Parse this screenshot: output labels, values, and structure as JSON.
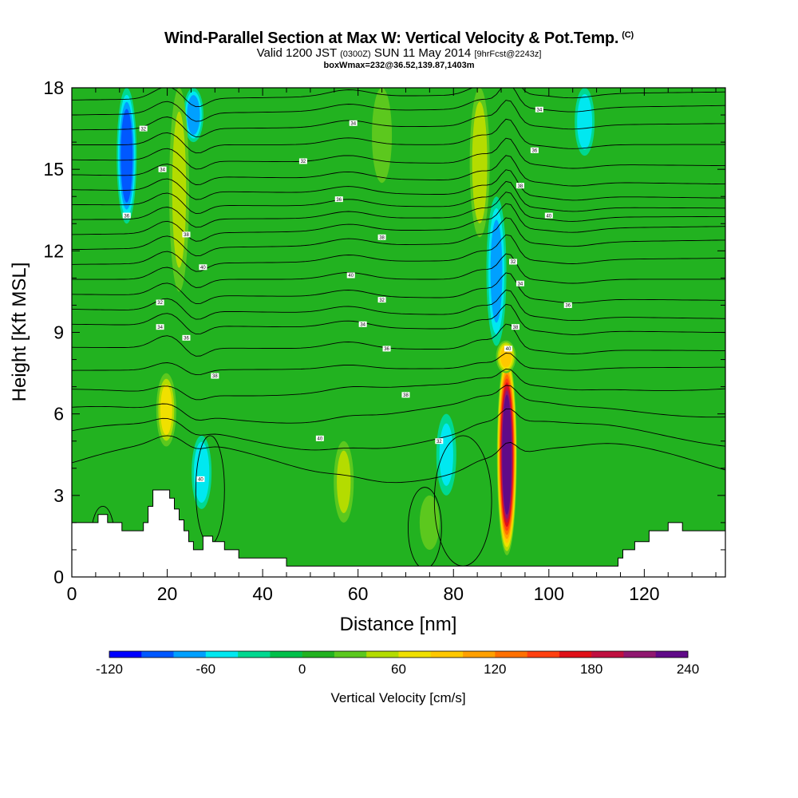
{
  "title": {
    "main": "Wind-Parallel Section at Max W: Vertical Velocity & Pot.Temp.",
    "mark": "(C)",
    "valid_prefix": "Valid 1200 JST",
    "valid_utc": "(0300Z)",
    "valid_date": "SUN 11 May 2014",
    "forecast": "[9hrFcst@2243z]",
    "box_info": "boxWmax=232@36.52,139.87,1403m"
  },
  "chart_data": {
    "type": "heatmap",
    "xlabel": "Distance [nm]",
    "ylabel": "Height [Kft MSL]",
    "xlim": [
      0,
      137
    ],
    "ylim": [
      0,
      18
    ],
    "x_ticks": [
      "0",
      "20",
      "40",
      "60",
      "80",
      "100",
      "120"
    ],
    "y_ticks": [
      "0",
      "3",
      "6",
      "9",
      "12",
      "15",
      "18"
    ],
    "colorbar": {
      "title": "Vertical Velocity [cm/s]",
      "ticks": [
        "-120",
        "-60",
        "0",
        "60",
        "120",
        "180",
        "240"
      ],
      "levels": [
        -120,
        -100,
        -80,
        -60,
        -40,
        -20,
        0,
        20,
        40,
        60,
        80,
        100,
        120,
        140,
        160,
        180,
        200,
        220,
        240
      ],
      "colors": [
        "#0000ff",
        "#0058ff",
        "#00a0ff",
        "#00e8f0",
        "#00d890",
        "#00c04a",
        "#22b220",
        "#5cc81e",
        "#b4dc00",
        "#f0e000",
        "#ffc800",
        "#ffa000",
        "#ff7000",
        "#ff4010",
        "#e01018",
        "#c01040",
        "#901870",
        "#600a88"
      ]
    },
    "background_level": 0,
    "updrafts": [
      {
        "x": 91.2,
        "peak_w": 232,
        "base_kft": 0.8,
        "top_kft": 8.2,
        "note": "max W"
      },
      {
        "x": 91.0,
        "peak_w": 80,
        "base_kft": 7.5,
        "top_kft": 8.7
      },
      {
        "x": 19.8,
        "peak_w": 60,
        "base_kft": 4.8,
        "top_kft": 7.5
      },
      {
        "x": 85.5,
        "peak_w": 50,
        "base_kft": 12.5,
        "top_kft": 18
      },
      {
        "x": 22.5,
        "peak_w": 40,
        "base_kft": 10.5,
        "top_kft": 18
      },
      {
        "x": 57.0,
        "peak_w": 40,
        "base_kft": 2.0,
        "top_kft": 5.0
      },
      {
        "x": 65.0,
        "peak_w": 35,
        "base_kft": 14.5,
        "top_kft": 18
      },
      {
        "x": 75.0,
        "peak_w": 30,
        "base_kft": 1.0,
        "top_kft": 3.0
      }
    ],
    "downdrafts": [
      {
        "x": 11.5,
        "peak_w": -90,
        "base_kft": 13.0,
        "top_kft": 18
      },
      {
        "x": 25.5,
        "peak_w": -70,
        "base_kft": 16.0,
        "top_kft": 18
      },
      {
        "x": 89.0,
        "peak_w": -60,
        "base_kft": 8.5,
        "top_kft": 14.0
      },
      {
        "x": 107.5,
        "peak_w": -50,
        "base_kft": 15.5,
        "top_kft": 18
      },
      {
        "x": 27.2,
        "peak_w": -55,
        "base_kft": 2.5,
        "top_kft": 5.2
      },
      {
        "x": 78.5,
        "peak_w": -40,
        "base_kft": 3.0,
        "top_kft": 6.0
      }
    ],
    "theta_labels": [
      "32",
      "34",
      "36",
      "38",
      "40"
    ],
    "terrain_kft": [
      [
        0,
        2.0
      ],
      [
        5.5,
        2.0
      ],
      [
        5.5,
        2.3
      ],
      [
        7.5,
        2.3
      ],
      [
        7.5,
        2.0
      ],
      [
        10.5,
        2.0
      ],
      [
        10.5,
        1.7
      ],
      [
        15,
        1.7
      ],
      [
        15,
        2.0
      ],
      [
        16,
        2.0
      ],
      [
        16,
        2.6
      ],
      [
        17,
        2.6
      ],
      [
        17,
        3.2
      ],
      [
        20.5,
        3.2
      ],
      [
        20.5,
        2.9
      ],
      [
        21.5,
        2.9
      ],
      [
        21.5,
        2.5
      ],
      [
        22.5,
        2.5
      ],
      [
        22.5,
        2.1
      ],
      [
        23.5,
        2.1
      ],
      [
        23.5,
        1.7
      ],
      [
        24.5,
        1.7
      ],
      [
        24.5,
        1.3
      ],
      [
        25.5,
        1.3
      ],
      [
        25.5,
        1.0
      ],
      [
        27.5,
        1.0
      ],
      [
        27.5,
        1.5
      ],
      [
        29.5,
        1.5
      ],
      [
        29.5,
        1.3
      ],
      [
        32,
        1.3
      ],
      [
        32,
        1.0
      ],
      [
        35,
        1.0
      ],
      [
        35,
        0.7
      ],
      [
        45,
        0.7
      ],
      [
        45,
        0.4
      ],
      [
        114.5,
        0.4
      ],
      [
        114.5,
        0.7
      ],
      [
        115.5,
        0.7
      ],
      [
        115.5,
        1.0
      ],
      [
        118,
        1.0
      ],
      [
        118,
        1.3
      ],
      [
        121,
        1.3
      ],
      [
        121,
        1.7
      ],
      [
        125,
        1.7
      ],
      [
        125,
        2.0
      ],
      [
        128,
        2.0
      ],
      [
        128,
        1.7
      ],
      [
        137,
        1.7
      ],
      [
        137,
        0
      ],
      [
        0,
        0
      ]
    ]
  }
}
